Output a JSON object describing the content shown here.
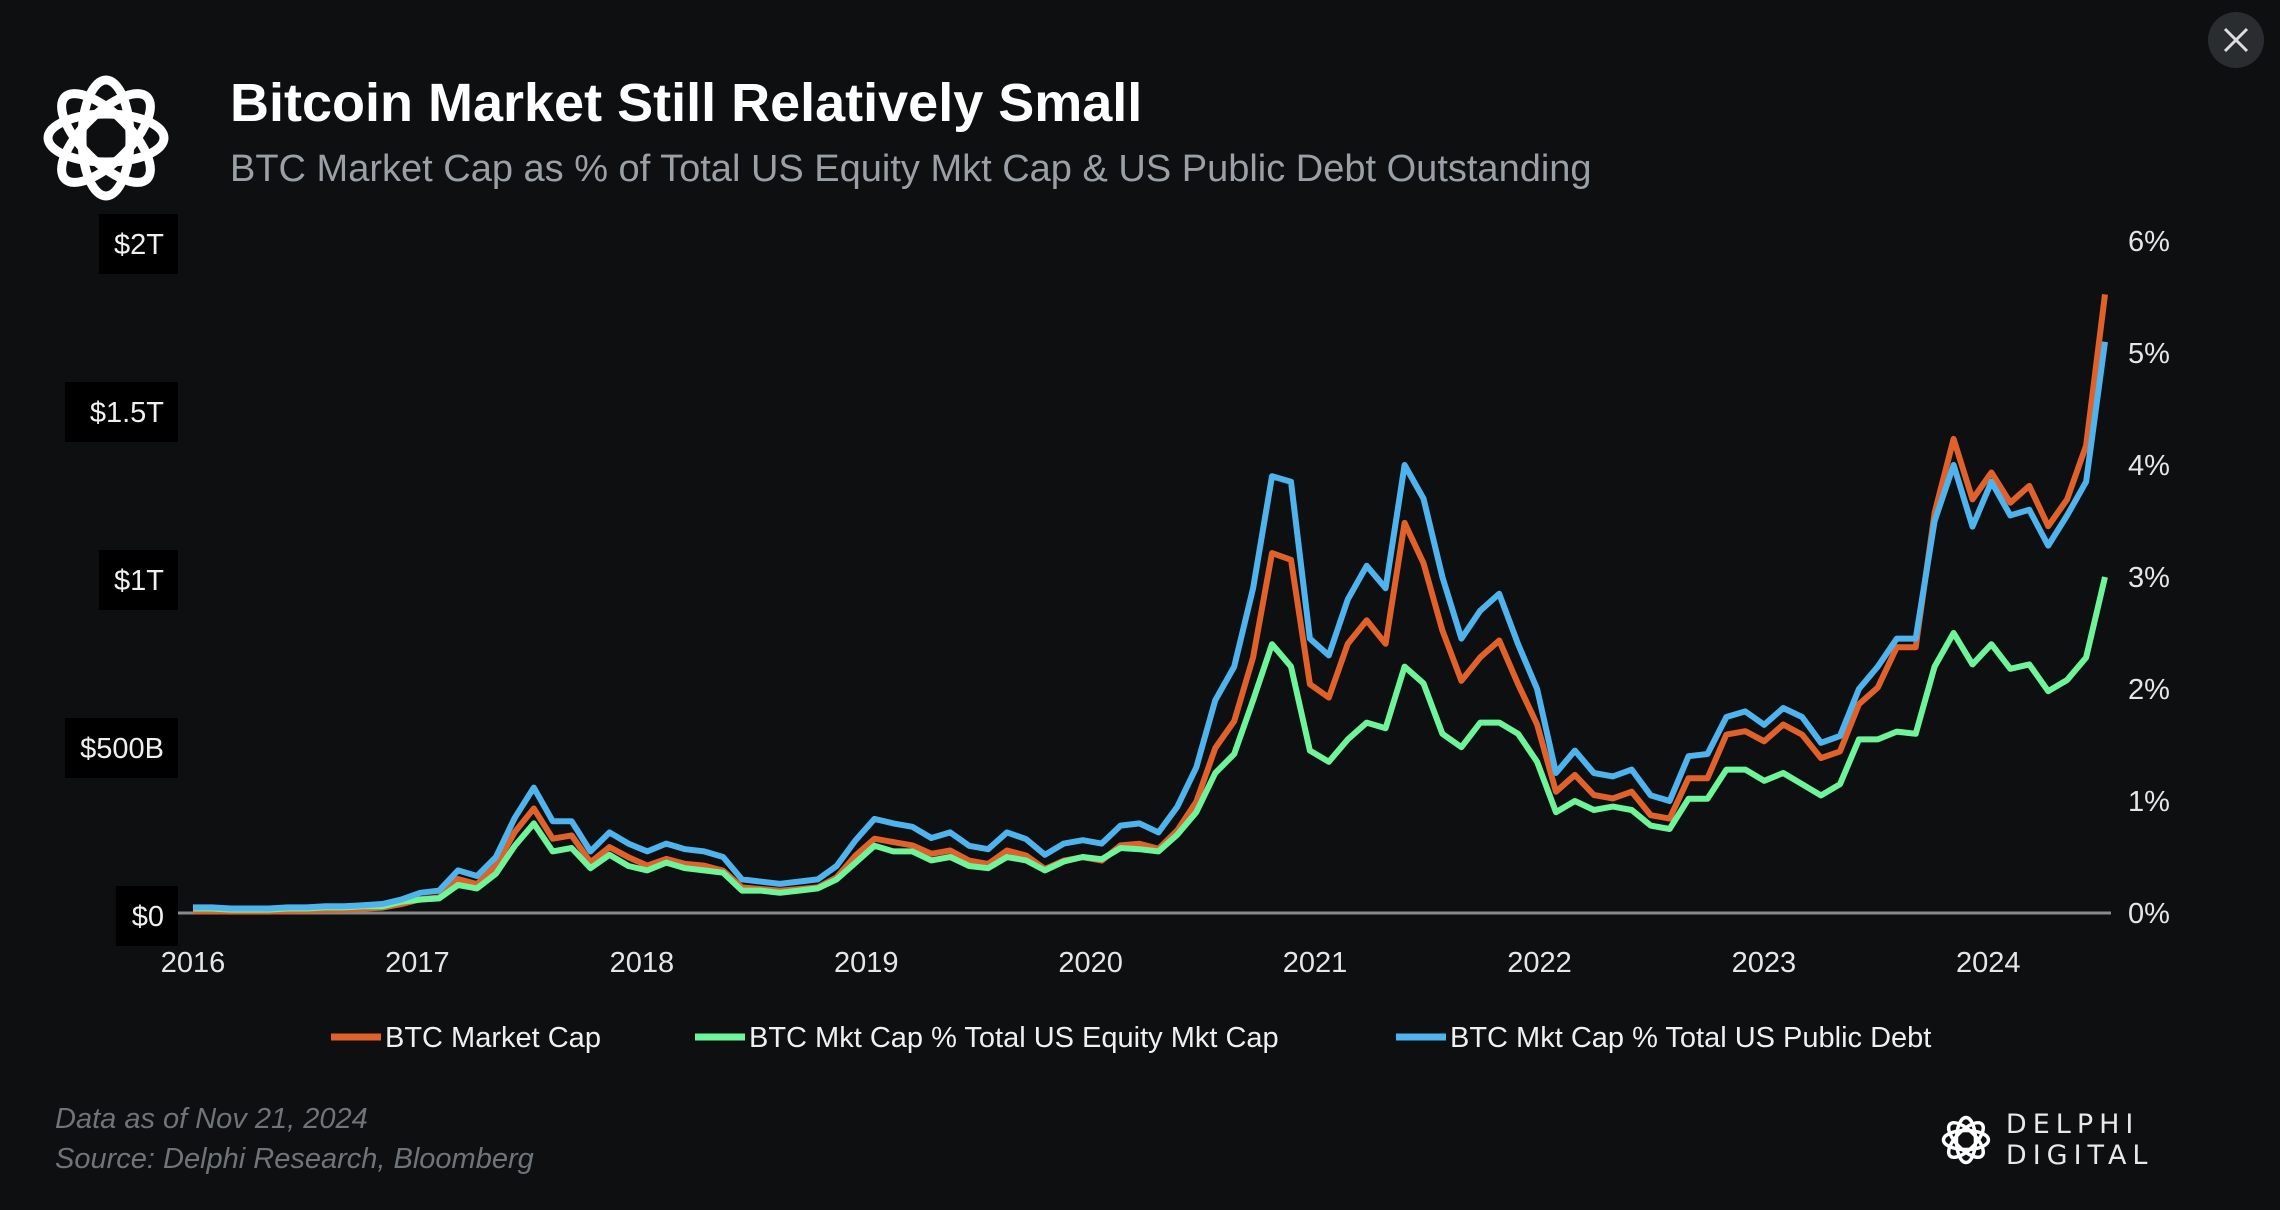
{
  "header": {
    "title": "Bitcoin Market Still Relatively Small",
    "subtitle": "BTC Market Cap as % of Total US Equity Mkt Cap & US Public Debt Outstanding",
    "logo": "delphi-knot-logo"
  },
  "footer": {
    "date_note": "Data as of Nov 21, 2024",
    "source": "Source: Delphi Research, Bloomberg",
    "brand": "DELPHI DIGITAL"
  },
  "controls": {
    "close_icon": "close-icon"
  },
  "colors": {
    "background": "#0d0f10",
    "orange": "#e0622a",
    "green": "#6ef59a",
    "blue": "#4fb3ee",
    "axis": "#8a8a8a"
  },
  "chart_data": {
    "type": "line",
    "title": "Bitcoin Market Still Relatively Small",
    "subtitle": "BTC Market Cap as % of Total US Equity Mkt Cap & US Public Debt Outstanding",
    "x_ticks": [
      "2016",
      "2017",
      "2018",
      "2019",
      "2020",
      "2021",
      "2022",
      "2023",
      "2024"
    ],
    "x_range": [
      2016,
      2024.52
    ],
    "y_left": {
      "ticks": [
        "$0",
        "$500B",
        "$1T",
        "$1.5T",
        "$2T"
      ],
      "tick_values": [
        0,
        500,
        1000,
        1500,
        2000
      ],
      "range": [
        0,
        2000
      ],
      "unit": "$B"
    },
    "y_right": {
      "ticks": [
        "0%",
        "1%",
        "2%",
        "3%",
        "4%",
        "5%",
        "6%"
      ],
      "tick_values": [
        0,
        1,
        2,
        3,
        4,
        5,
        6
      ],
      "range": [
        0,
        6
      ],
      "unit": "%"
    },
    "grid": false,
    "legend_position": "bottom",
    "series": [
      {
        "name": "BTC Market Cap",
        "axis": "left",
        "color": "#e0622a",
        "values": [
          15,
          15,
          13,
          13,
          13,
          15,
          16,
          18,
          19,
          22,
          25,
          35,
          50,
          55,
          110,
          95,
          150,
          250,
          320,
          230,
          240,
          160,
          205,
          175,
          150,
          170,
          155,
          150,
          135,
          85,
          80,
          75,
          80,
          85,
          115,
          180,
          230,
          220,
          210,
          185,
          195,
          165,
          155,
          195,
          180,
          140,
          165,
          175,
          165,
          210,
          215,
          200,
          255,
          340,
          500,
          580,
          770,
          1080,
          1060,
          690,
          650,
          810,
          880,
          810,
          1170,
          1050,
          850,
          700,
          770,
          820,
          690,
          570,
          370,
          420,
          360,
          350,
          370,
          300,
          290,
          410,
          410,
          540,
          550,
          520,
          570,
          540,
          470,
          490,
          630,
          680,
          800,
          800,
          1200,
          1420,
          1240,
          1320,
          1230,
          1280,
          1160,
          1240,
          1400,
          1850
        ]
      },
      {
        "name": "BTC Mkt Cap % Total US Equity Mkt Cap",
        "axis": "right",
        "color": "#6ef59a",
        "values": [
          0.04,
          0.04,
          0.03,
          0.03,
          0.03,
          0.04,
          0.04,
          0.05,
          0.05,
          0.06,
          0.06,
          0.1,
          0.12,
          0.13,
          0.25,
          0.22,
          0.35,
          0.6,
          0.8,
          0.55,
          0.58,
          0.4,
          0.52,
          0.42,
          0.38,
          0.45,
          0.4,
          0.38,
          0.36,
          0.2,
          0.2,
          0.18,
          0.2,
          0.22,
          0.3,
          0.45,
          0.6,
          0.55,
          0.55,
          0.47,
          0.5,
          0.42,
          0.4,
          0.5,
          0.47,
          0.38,
          0.46,
          0.5,
          0.48,
          0.58,
          0.57,
          0.55,
          0.7,
          0.9,
          1.25,
          1.42,
          1.9,
          2.4,
          2.2,
          1.45,
          1.35,
          1.55,
          1.7,
          1.65,
          2.2,
          2.05,
          1.6,
          1.48,
          1.7,
          1.7,
          1.6,
          1.35,
          0.9,
          1.0,
          0.92,
          0.95,
          0.92,
          0.78,
          0.75,
          1.02,
          1.02,
          1.28,
          1.28,
          1.18,
          1.25,
          1.15,
          1.05,
          1.15,
          1.55,
          1.55,
          1.62,
          1.6,
          2.2,
          2.5,
          2.22,
          2.4,
          2.18,
          2.22,
          1.98,
          2.08,
          2.28,
          3.0
        ]
      },
      {
        "name": "BTC Mkt Cap % Total US Public Debt",
        "axis": "right",
        "color": "#4fb3ee",
        "values": [
          0.05,
          0.05,
          0.04,
          0.04,
          0.04,
          0.05,
          0.05,
          0.06,
          0.06,
          0.07,
          0.08,
          0.12,
          0.18,
          0.2,
          0.38,
          0.33,
          0.5,
          0.85,
          1.12,
          0.82,
          0.82,
          0.55,
          0.72,
          0.62,
          0.55,
          0.62,
          0.57,
          0.55,
          0.5,
          0.3,
          0.28,
          0.26,
          0.28,
          0.3,
          0.42,
          0.65,
          0.84,
          0.8,
          0.77,
          0.67,
          0.72,
          0.6,
          0.57,
          0.72,
          0.66,
          0.52,
          0.62,
          0.65,
          0.62,
          0.78,
          0.8,
          0.72,
          0.95,
          1.3,
          1.9,
          2.2,
          2.9,
          3.9,
          3.85,
          2.45,
          2.3,
          2.8,
          3.1,
          2.9,
          4.0,
          3.7,
          3.0,
          2.45,
          2.7,
          2.85,
          2.4,
          2.0,
          1.25,
          1.45,
          1.25,
          1.22,
          1.28,
          1.05,
          1.0,
          1.4,
          1.42,
          1.75,
          1.8,
          1.68,
          1.83,
          1.75,
          1.52,
          1.58,
          2.0,
          2.2,
          2.45,
          2.45,
          3.5,
          4.0,
          3.45,
          3.85,
          3.55,
          3.6,
          3.28,
          3.55,
          3.85,
          5.1
        ]
      }
    ]
  }
}
